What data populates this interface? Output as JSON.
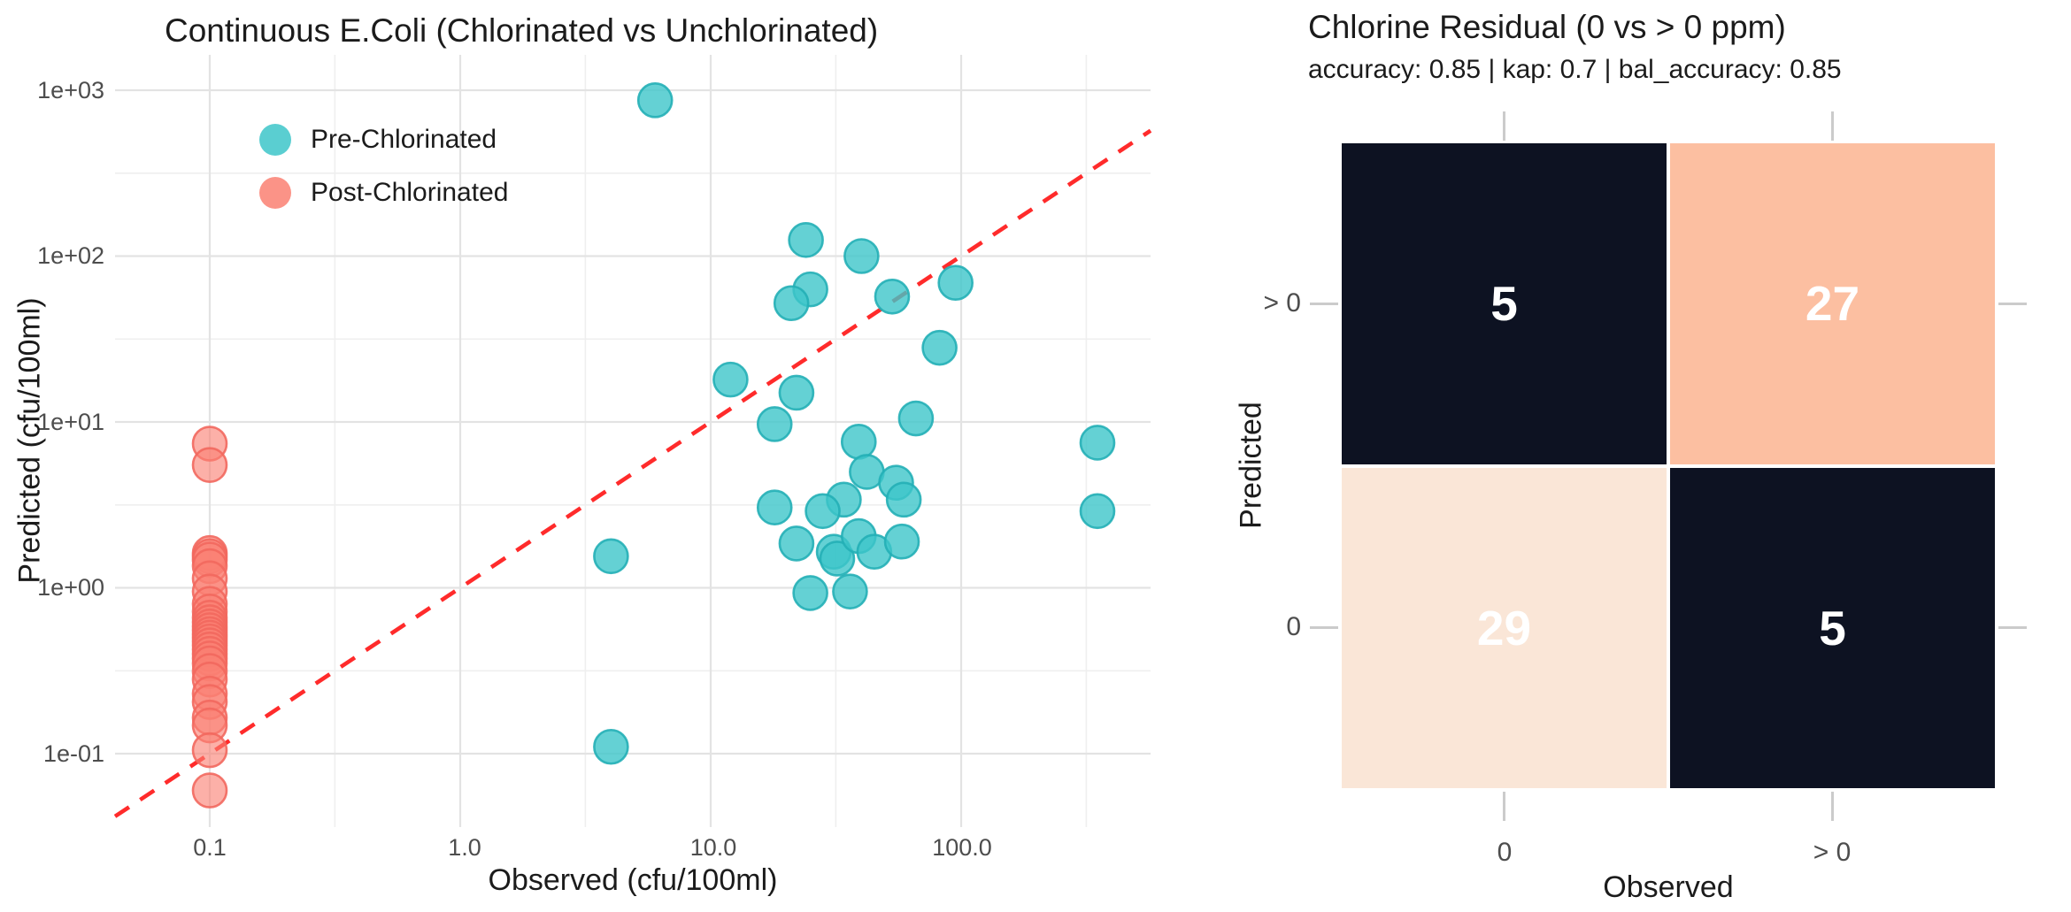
{
  "left_chart": {
    "title": "Continuous E.Coli (Chlorinated vs Unchlorinated)",
    "x_axis_label": "Observed (cfu/100ml)",
    "y_axis_label": "Predicted (cfu/100ml)",
    "x_tick_labels": [
      "0.1",
      "1.0",
      "10.0",
      "100.0"
    ],
    "y_tick_labels": [
      "1e+03",
      "1e+02",
      "1e+01",
      "1e+00",
      "1e-01"
    ],
    "legend": {
      "items": [
        {
          "label": "Pre-Chlorinated"
        },
        {
          "label": "Post-Chlorinated"
        }
      ]
    }
  },
  "right_chart": {
    "title": "Chlorine Residual (0 vs > 0 ppm)",
    "subtitle": "accuracy: 0.85 | kap: 0.7 | bal_accuracy: 0.85",
    "x_axis_label": "Observed",
    "y_axis_label": "Predicted",
    "x_tick_labels": [
      "0",
      "> 0"
    ],
    "y_tick_labels": [
      "> 0",
      "0"
    ]
  },
  "chart_data": [
    {
      "type": "scatter",
      "title": "Continuous E.Coli (Chlorinated vs Unchlorinated)",
      "xlabel": "Observed (cfu/100ml)",
      "ylabel": "Predicted (cfu/100ml)",
      "x_scale": "log10",
      "y_scale": "log10",
      "xlim": [
        0.042,
        570
      ],
      "ylim": [
        0.036,
        1630
      ],
      "x_ticks": [
        0.1,
        1.0,
        10.0,
        100.0
      ],
      "y_ticks": [
        0.1,
        1,
        10,
        100,
        1000
      ],
      "grid": "major and minor, light gray on white",
      "reference_line": {
        "kind": "identity y=x",
        "style": "dashed",
        "color": "#ff2b2b"
      },
      "series": [
        {
          "name": "Pre-Chlorinated",
          "color": "#3dc5c9",
          "stroke": "#23afb6",
          "fill_opacity": 0.8,
          "points": [
            [
              6,
              870
            ],
            [
              24,
              125
            ],
            [
              40,
              100
            ],
            [
              25,
              63
            ],
            [
              21,
              52
            ],
            [
              53,
              57
            ],
            [
              95,
              69
            ],
            [
              82,
              28
            ],
            [
              12,
              18
            ],
            [
              22,
              15
            ],
            [
              18,
              9.7
            ],
            [
              66,
              10.5
            ],
            [
              39,
              7.6
            ],
            [
              42,
              5
            ],
            [
              55,
              4.3
            ],
            [
              59,
              3.4
            ],
            [
              34,
              3.4
            ],
            [
              18,
              3.05
            ],
            [
              28,
              2.9
            ],
            [
              22,
              1.85
            ],
            [
              31,
              1.65
            ],
            [
              32,
              1.5
            ],
            [
              39,
              2.05
            ],
            [
              45,
              1.65
            ],
            [
              58,
              1.9
            ],
            [
              25,
              0.93
            ],
            [
              36,
              0.95
            ],
            [
              4,
              1.55
            ],
            [
              4,
              0.11
            ],
            [
              350,
              7.5
            ],
            [
              350,
              2.9
            ]
          ]
        },
        {
          "name": "Post-Chlorinated",
          "color": "#fa8072",
          "stroke": "#f2685e",
          "fill_opacity": 0.62,
          "points": [
            [
              0.1,
              7.4
            ],
            [
              0.1,
              5.5
            ],
            [
              0.1,
              1.62
            ],
            [
              0.1,
              1.55
            ],
            [
              0.1,
              1.48
            ],
            [
              0.1,
              1.35
            ],
            [
              0.1,
              1.14
            ],
            [
              0.1,
              0.95
            ],
            [
              0.1,
              0.8
            ],
            [
              0.1,
              0.72
            ],
            [
              0.1,
              0.66
            ],
            [
              0.1,
              0.62
            ],
            [
              0.1,
              0.585
            ],
            [
              0.1,
              0.555
            ],
            [
              0.1,
              0.525
            ],
            [
              0.1,
              0.5
            ],
            [
              0.1,
              0.475
            ],
            [
              0.1,
              0.45
            ],
            [
              0.1,
              0.425
            ],
            [
              0.1,
              0.4
            ],
            [
              0.1,
              0.375
            ],
            [
              0.1,
              0.35
            ],
            [
              0.1,
              0.315
            ],
            [
              0.1,
              0.28
            ],
            [
              0.1,
              0.23
            ],
            [
              0.1,
              0.205
            ],
            [
              0.1,
              0.165
            ],
            [
              0.1,
              0.148
            ],
            [
              0.1,
              0.105
            ],
            [
              0.1,
              0.06
            ]
          ]
        }
      ]
    },
    {
      "type": "heatmap",
      "title": "Chlorine Residual (0 vs > 0 ppm)",
      "subtitle": "accuracy: 0.85 | kap: 0.7 | bal_accuracy: 0.85",
      "xlabel": "Observed",
      "ylabel": "Predicted",
      "x_categories": [
        "0",
        "> 0"
      ],
      "y_categories": [
        "> 0",
        "0"
      ],
      "values": [
        [
          5,
          27
        ],
        [
          29,
          5
        ]
      ],
      "cell_colors": [
        [
          "#0d1222",
          "#fcbfa1"
        ],
        [
          "#fae6d7",
          "#0d1222"
        ]
      ],
      "text_color": "#ffffff",
      "metrics": {
        "accuracy": 0.85,
        "kap": 0.7,
        "bal_accuracy": 0.85
      }
    }
  ]
}
